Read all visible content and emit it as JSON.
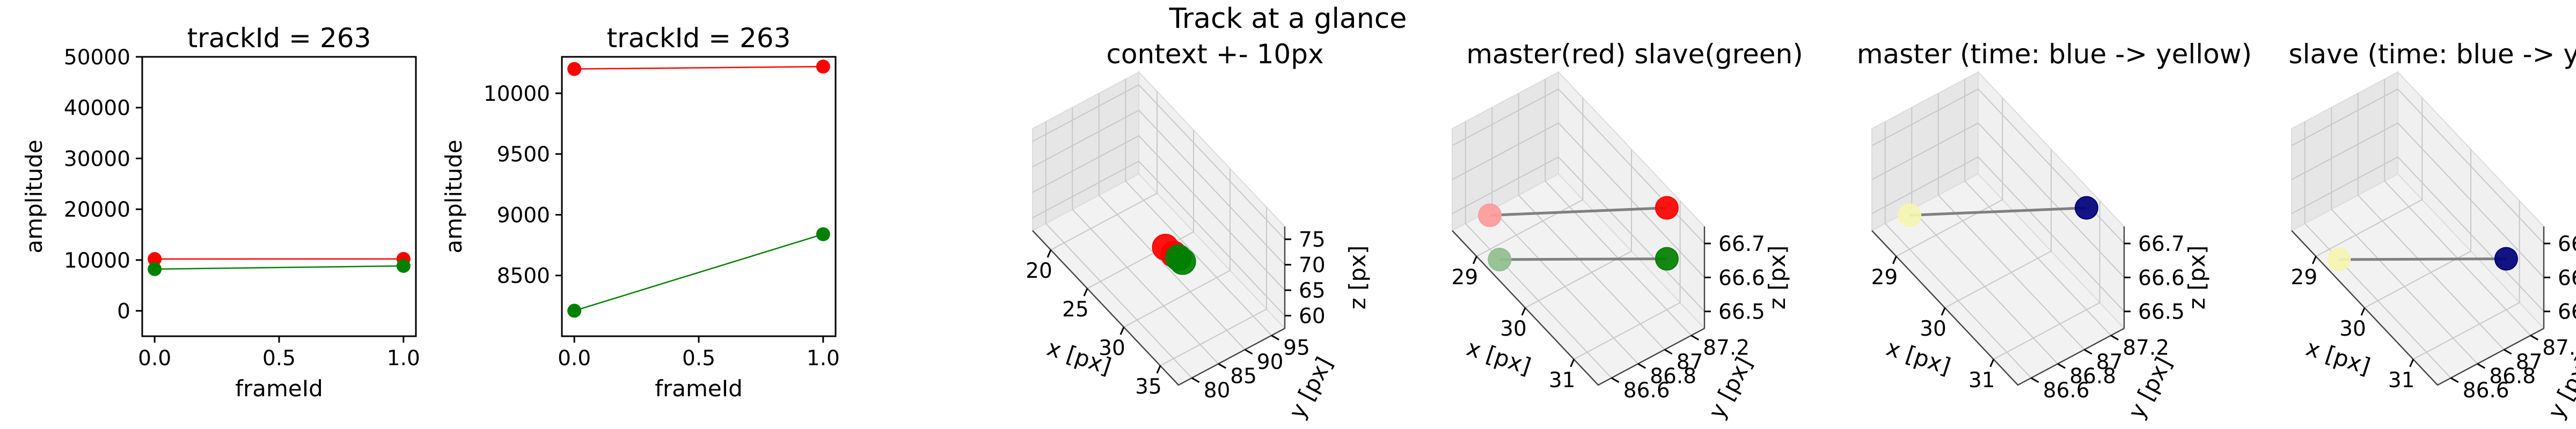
{
  "figure": {
    "suptitle": "Track at a glance"
  },
  "chart_data": [
    {
      "type": "line",
      "title": "trackId = 263",
      "xlabel": "frameId",
      "ylabel": "amplitude",
      "xlim": [
        -0.05,
        1.05
      ],
      "ylim": [
        -5000,
        50000
      ],
      "xticks": [
        0.0,
        0.5,
        1.0
      ],
      "yticks": [
        0,
        10000,
        20000,
        30000,
        40000,
        50000
      ],
      "x": [
        0,
        1
      ],
      "series": [
        {
          "values": [
            10200,
            10220
          ],
          "color": "#ff0000"
        },
        {
          "values": [
            8210,
            8840
          ],
          "color": "#008000"
        }
      ]
    },
    {
      "type": "line",
      "title": "trackId = 263",
      "xlabel": "frameId",
      "ylabel": "amplitude",
      "xlim": [
        -0.05,
        1.05
      ],
      "ylim": [
        8000,
        10300
      ],
      "xticks": [
        0.0,
        0.5,
        1.0
      ],
      "yticks": [
        8500,
        9000,
        9500,
        10000
      ],
      "x": [
        0,
        1
      ],
      "series": [
        {
          "values": [
            10200,
            10220
          ],
          "color": "#ff0000"
        },
        {
          "values": [
            8210,
            8840
          ],
          "color": "#008000"
        }
      ]
    },
    {
      "type": "scatter3d",
      "title": "context +- 10px",
      "xlabel": "x [px]",
      "ylabel": "y [px]",
      "zlabel": "z [px]",
      "xticks": [
        20,
        25,
        30,
        35
      ],
      "yticks": [
        80,
        85,
        90,
        95
      ],
      "zticks": [
        60,
        65,
        70,
        75
      ],
      "points": [
        {
          "x": 29.0,
          "y": 86.7,
          "z": 66.55,
          "color": "#ff0000"
        },
        {
          "x": 30.0,
          "y": 86.9,
          "z": 66.6,
          "color": "#ff0000"
        },
        {
          "x": 30.5,
          "y": 87.1,
          "z": 66.55,
          "color": "#008000"
        },
        {
          "x": 31.0,
          "y": 87.2,
          "z": 66.5,
          "color": "#008000"
        }
      ]
    },
    {
      "type": "scatter3d",
      "title": "master(red) slave(green)",
      "xlabel": "x [px]",
      "ylabel": "y [px]",
      "zlabel": "z [px]",
      "xticks": [
        29,
        30,
        31
      ],
      "yticks": [
        86.6,
        86.8,
        87.0,
        87.2
      ],
      "zticks": [
        66.5,
        66.6,
        66.7
      ],
      "points": [
        {
          "x": 29.0,
          "y": 86.6,
          "z": 66.55,
          "color": "#ff9a9a"
        },
        {
          "x": 31.0,
          "y": 87.2,
          "z": 66.75,
          "color": "#ff0000"
        },
        {
          "x": 29.2,
          "y": 86.6,
          "z": 66.45,
          "color": "#8fbf8f"
        },
        {
          "x": 31.0,
          "y": 87.2,
          "z": 66.6,
          "color": "#008000"
        }
      ],
      "links": [
        [
          0,
          1
        ],
        [
          2,
          3
        ]
      ]
    },
    {
      "type": "scatter3d",
      "title": "master (time: blue -> yellow)",
      "xlabel": "x [px]",
      "ylabel": "y [px]",
      "zlabel": "z [px]",
      "xticks": [
        29,
        30,
        31
      ],
      "yticks": [
        86.6,
        86.8,
        87.0,
        87.2
      ],
      "zticks": [
        66.5,
        66.6,
        66.7
      ],
      "points": [
        {
          "x": 29.0,
          "y": 86.6,
          "z": 66.55,
          "color": "#f5f5b0"
        },
        {
          "x": 31.0,
          "y": 87.2,
          "z": 66.75,
          "color": "#00007a"
        }
      ],
      "links": [
        [
          0,
          1
        ]
      ]
    },
    {
      "type": "scatter3d",
      "title": "slave (time: blue -> yellow)",
      "xlabel": "x [px]",
      "ylabel": "y [px]",
      "zlabel": "z [px]",
      "xticks": [
        29,
        30,
        31
      ],
      "yticks": [
        86.6,
        86.8,
        87.0,
        87.2
      ],
      "zticks": [
        66.5,
        66.6,
        66.7
      ],
      "points": [
        {
          "x": 29.2,
          "y": 86.6,
          "z": 66.45,
          "color": "#f5f5b0"
        },
        {
          "x": 31.0,
          "y": 87.2,
          "z": 66.6,
          "color": "#00007a"
        }
      ],
      "links": [
        [
          0,
          1
        ]
      ]
    }
  ]
}
